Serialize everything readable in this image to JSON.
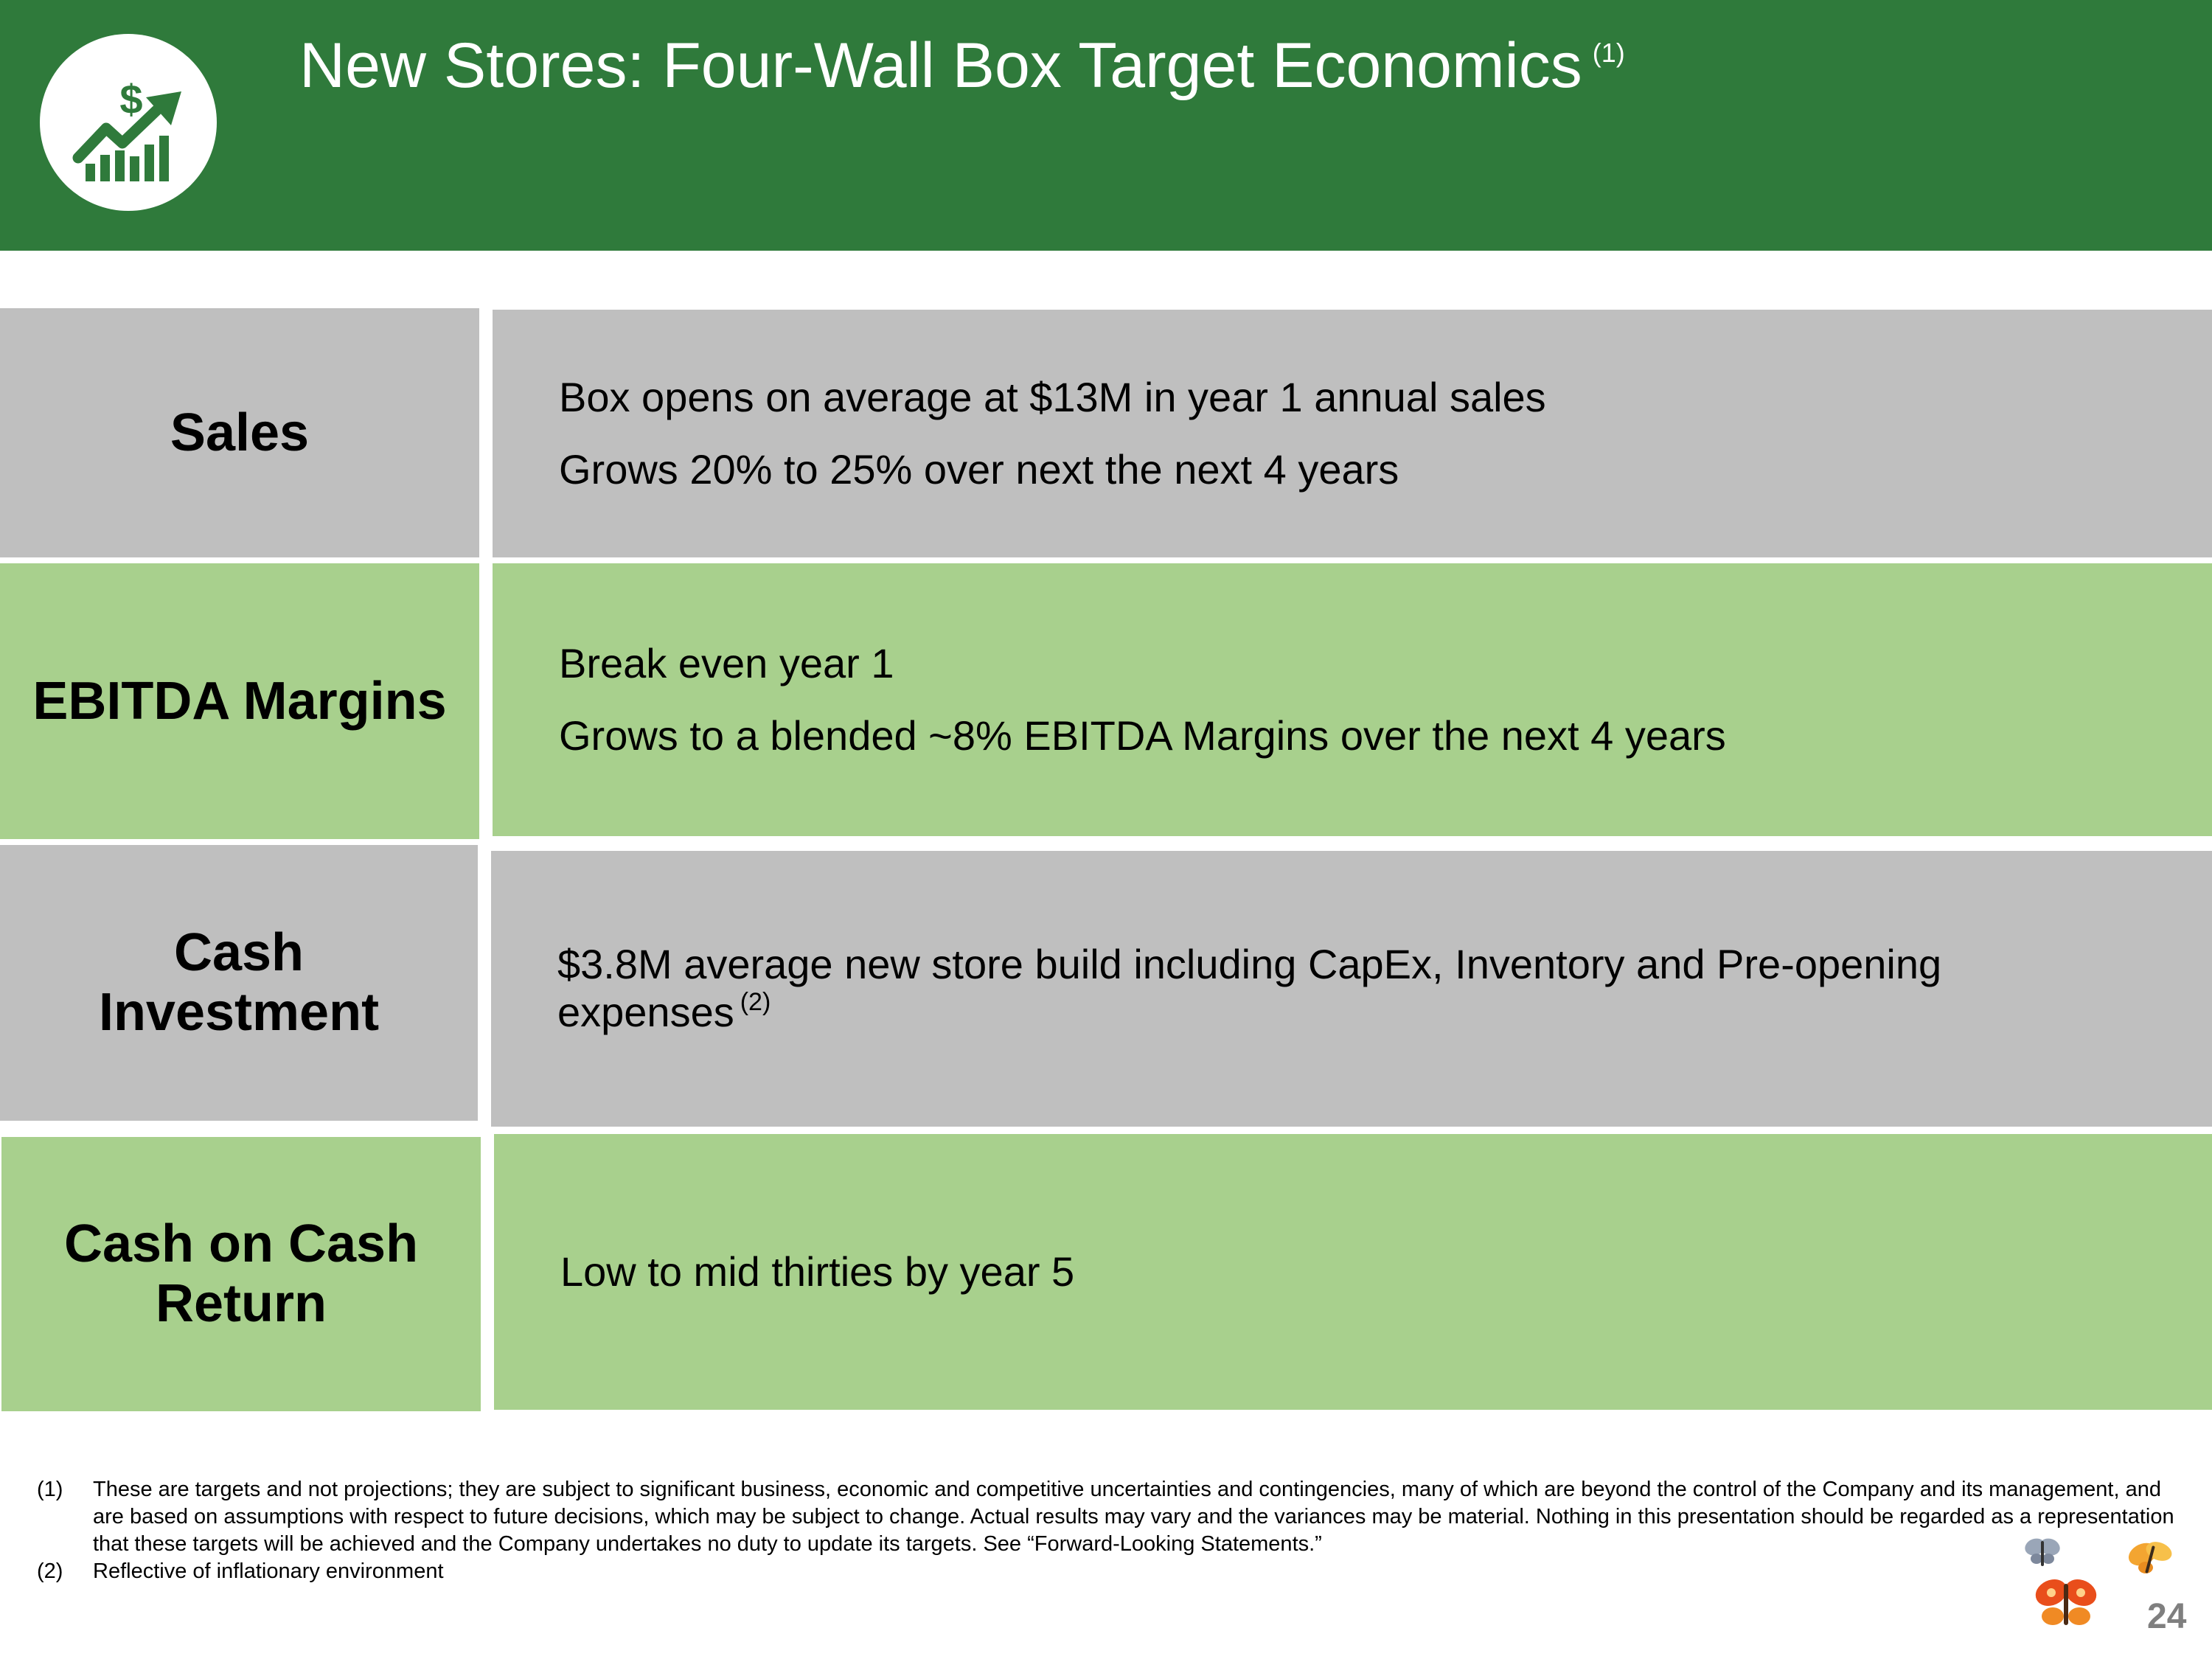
{
  "header": {
    "title": "New Stores: Four-Wall Box Target Economics",
    "title_note": "(1)",
    "logo_icon": "growth-chart-dollar-icon",
    "background_color": "#2f7a3b"
  },
  "rows": [
    {
      "label_lines": [
        "Sales"
      ],
      "color": "#bfbfbf",
      "lines": [
        "Box opens on average at $13M in year 1 annual sales",
        "Grows 20% to 25% over next the next 4 years"
      ]
    },
    {
      "label_lines": [
        "EBITDA Margins"
      ],
      "color": "#a8d08d",
      "lines": [
        "Break even year 1",
        "Grows to a blended ~8% EBITDA Margins over the next 4 years"
      ]
    },
    {
      "label_lines": [
        "Cash",
        "Investment"
      ],
      "color": "#bfbfbf",
      "text": "$3.8M average new store build including CapEx, Inventory and Pre-opening expenses",
      "note": "(2)"
    },
    {
      "label_lines": [
        "Cash on Cash",
        "Return"
      ],
      "color": "#a8d08d",
      "lines": [
        "Low to mid thirties by year 5"
      ]
    }
  ],
  "footnotes": [
    {
      "num": "(1)",
      "text": "These are targets and not projections; they are subject to significant business, economic and competitive uncertainties and contingencies, many of which are beyond the control of the Company and its management, and are based on assumptions with respect to future decisions, which may be subject to change. Actual results may vary and the variances may be material. Nothing in this presentation should be regarded as a representation that these targets will be achieved and the Company undertakes no duty to update its targets. See “Forward-Looking Statements.”"
    },
    {
      "num": "(2)",
      "text": "Reflective of inflationary environment"
    }
  ],
  "page_number": "24",
  "decor_icons": [
    "butterfly-icon",
    "butterfly-icon",
    "butterfly-icon"
  ]
}
